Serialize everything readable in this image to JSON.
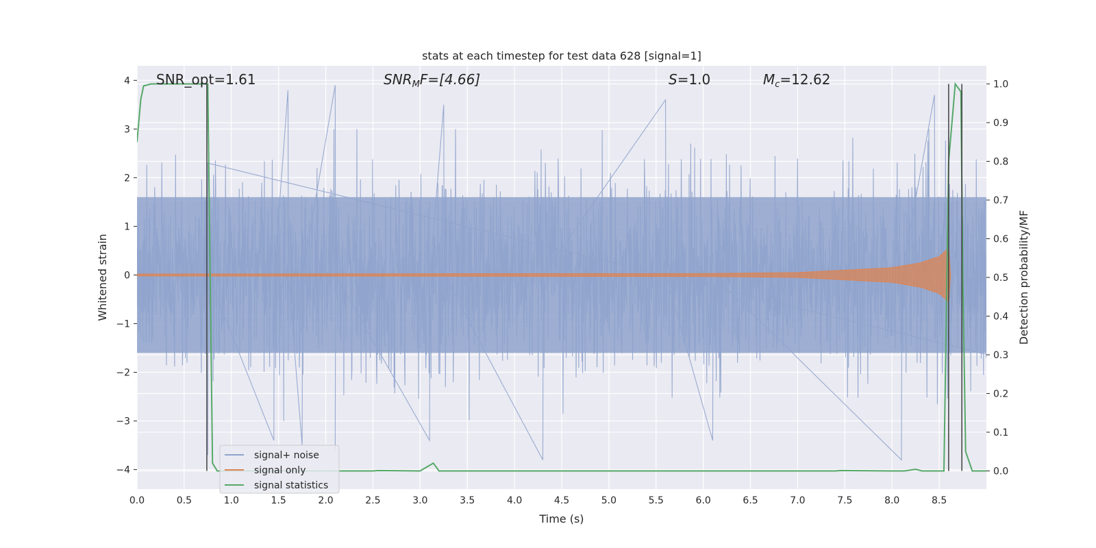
{
  "chart_data": {
    "type": "line",
    "title": "stats at each timestep for test data 628 [signal=1]",
    "xlabel": "Time (s)",
    "ylabel": "Whitened strain",
    "y2label": "Detection probability/MF",
    "xlim": [
      0.0,
      9.0
    ],
    "ylim": [
      -4.4,
      4.3
    ],
    "y2lim": [
      -0.047,
      1.047
    ],
    "xticks": [
      "0.0",
      "0.5",
      "1.0",
      "1.5",
      "2.0",
      "2.5",
      "3.0",
      "3.5",
      "4.0",
      "4.5",
      "5.0",
      "5.5",
      "6.0",
      "6.5",
      "7.0",
      "7.5",
      "8.0",
      "8.5"
    ],
    "yticks": [
      "4",
      "3",
      "2",
      "1",
      "0",
      "−1",
      "−2",
      "−3",
      "−4"
    ],
    "y2ticks": [
      "1.0",
      "0.9",
      "0.8",
      "0.7",
      "0.6",
      "0.5",
      "0.4",
      "0.3",
      "0.2",
      "0.1",
      "0.0"
    ],
    "grid": true,
    "legend_position": "lower left",
    "annotations": {
      "snr_opt": "SNR_opt=1.61",
      "snr_mf_base": "SNR",
      "snr_mf_sub": "M",
      "snr_mf_rest": "F=[4.66]",
      "s_base": "S",
      "s_rest": "=1.0",
      "mc_base": "M",
      "mc_sub": "c",
      "mc_rest": "=12.62"
    },
    "series": [
      {
        "name": "signal+ noise",
        "color": "#8fa3cc",
        "description_values": {
          "typical_envelope": [
            -2.0,
            2.0
          ],
          "peak_values": [
            {
              "x": 0.75,
              "y": 2.3
            },
            {
              "x": 0.75,
              "y": -3.7
            },
            {
              "x": 1.45,
              "y": -3.4
            },
            {
              "x": 1.6,
              "y": 3.8
            },
            {
              "x": 1.75,
              "y": -3.5
            },
            {
              "x": 2.1,
              "y": 3.9
            },
            {
              "x": 2.1,
              "y": -3.6
            },
            {
              "x": 3.1,
              "y": -3.4
            },
            {
              "x": 3.25,
              "y": 3.5
            },
            {
              "x": 4.3,
              "y": -3.8
            },
            {
              "x": 5.6,
              "y": 3.6
            },
            {
              "x": 6.1,
              "y": -3.4
            },
            {
              "x": 8.1,
              "y": -3.8
            },
            {
              "x": 8.45,
              "y": 3.7
            }
          ]
        }
      },
      {
        "name": "signal only",
        "color": "#dd8452",
        "points": [
          [
            0.0,
            0.02
          ],
          [
            6.0,
            0.03
          ],
          [
            7.0,
            0.05
          ],
          [
            7.5,
            0.1
          ],
          [
            8.0,
            0.15
          ],
          [
            8.3,
            0.25
          ],
          [
            8.5,
            0.38
          ],
          [
            8.6,
            0.55
          ],
          [
            8.62,
            0.0
          ]
        ]
      },
      {
        "name": "signal statistics",
        "color": "#55a868",
        "axis": "right",
        "points": [
          [
            0.0,
            0.85
          ],
          [
            0.04,
            0.96
          ],
          [
            0.07,
            0.995
          ],
          [
            0.15,
            1.0
          ],
          [
            0.7,
            1.0
          ],
          [
            0.75,
            1.0
          ],
          [
            0.8,
            0.02
          ],
          [
            0.85,
            0.0
          ],
          [
            2.5,
            0.0
          ],
          [
            2.55,
            0.001
          ],
          [
            3.0,
            0.0
          ],
          [
            3.07,
            0.01
          ],
          [
            3.14,
            0.02
          ],
          [
            3.2,
            0.0
          ],
          [
            4.0,
            0.0
          ],
          [
            7.4,
            0.0
          ],
          [
            7.45,
            0.001
          ],
          [
            8.0,
            0.0
          ],
          [
            8.13,
            0.0
          ],
          [
            8.25,
            0.004
          ],
          [
            8.32,
            0.0
          ],
          [
            8.55,
            0.0
          ],
          [
            8.6,
            0.8
          ],
          [
            8.67,
            1.0
          ],
          [
            8.73,
            0.98
          ],
          [
            8.75,
            0.5
          ],
          [
            8.78,
            0.05
          ],
          [
            8.85,
            0.0
          ],
          [
            9.0,
            0.0
          ]
        ]
      },
      {
        "name": "",
        "color": "#3f3f3f",
        "axis": "right",
        "points": [
          [
            0.74,
            1.0
          ],
          [
            0.74,
            0.0
          ],
          [
            8.6,
            1.0
          ],
          [
            8.6,
            0.0
          ],
          [
            8.74,
            1.0
          ],
          [
            8.74,
            0.0
          ]
        ]
      }
    ]
  }
}
